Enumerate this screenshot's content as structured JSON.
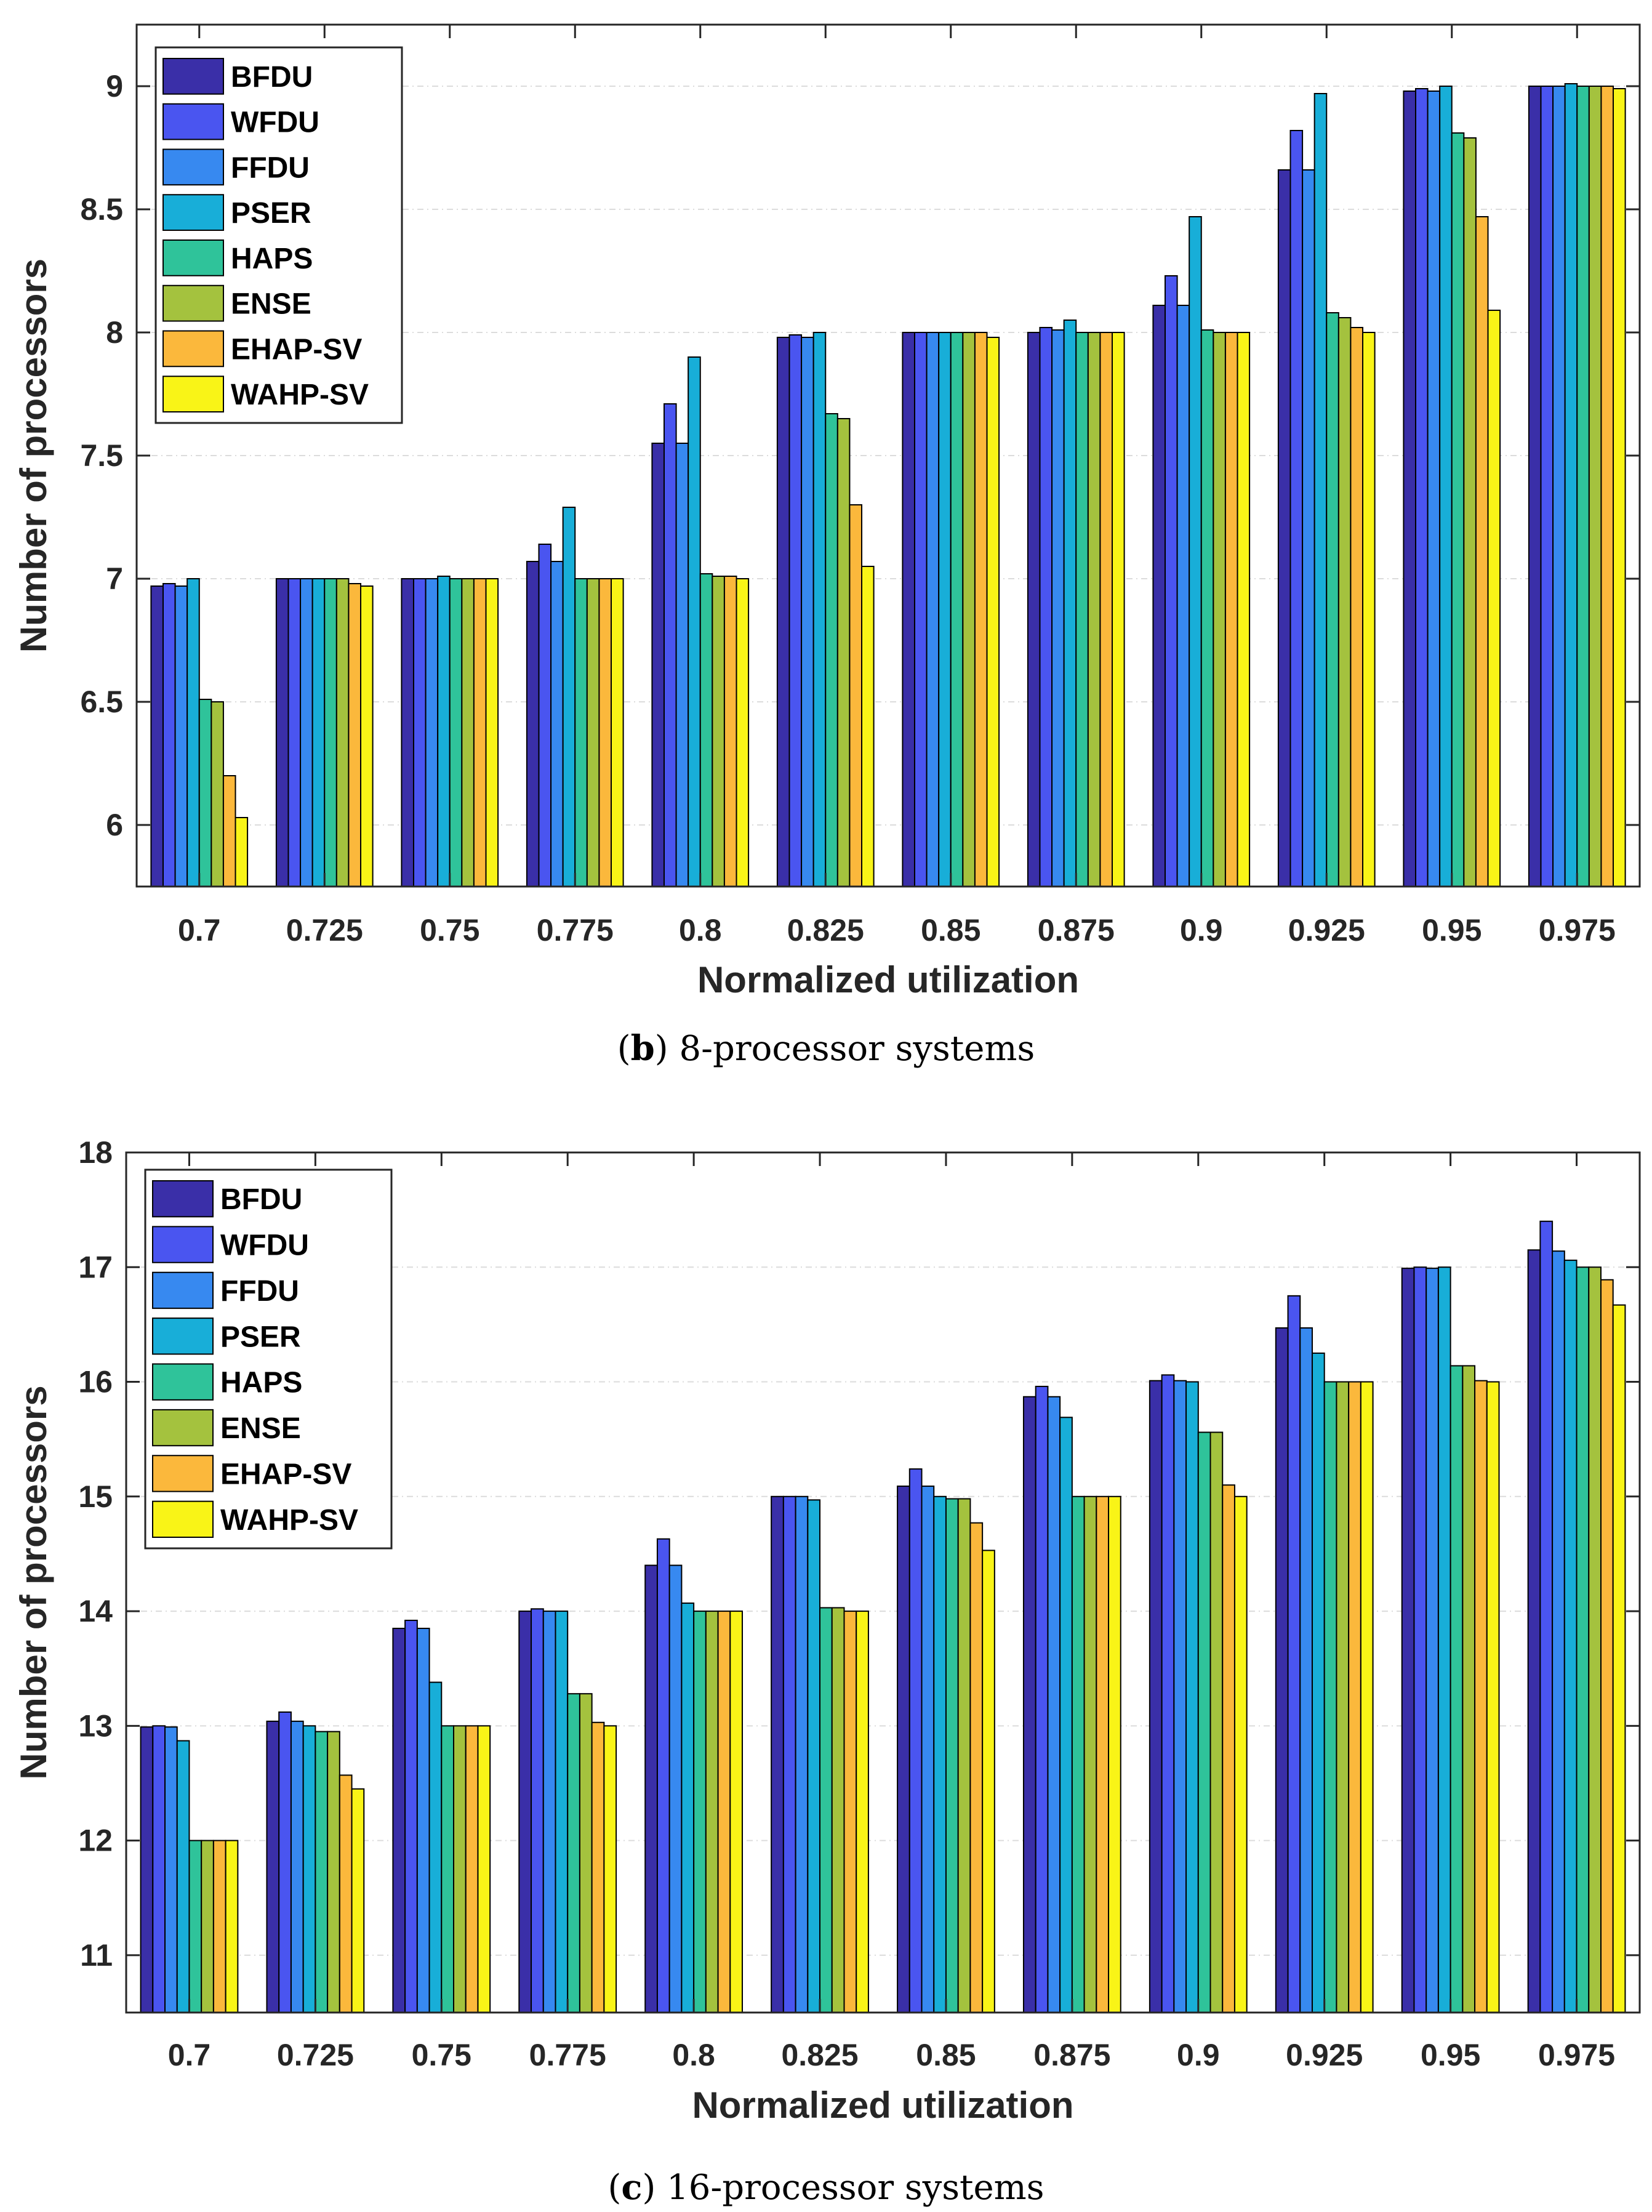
{
  "series_colors": [
    "#3a2fa8",
    "#4a55f0",
    "#3789f0",
    "#18aed8",
    "#2fc39a",
    "#a4c23e",
    "#fbb83c",
    "#f9f417"
  ],
  "chart_data": [
    {
      "type": "bar",
      "id": "b",
      "caption_label": "b",
      "caption_text": "8-processor systems",
      "xlabel": "Normalized utilization",
      "ylabel": "Number of processors",
      "ylim": [
        5.75,
        9.25
      ],
      "yticks": [
        6,
        6.5,
        7,
        7.5,
        8,
        8.5,
        9
      ],
      "ytick_labels": [
        "6",
        "6.5",
        "7",
        "7.5",
        "8",
        "8.5",
        "9"
      ],
      "grid": true,
      "legend_position": "top-left",
      "categories": [
        "0.7",
        "0.725",
        "0.75",
        "0.775",
        "0.8",
        "0.825",
        "0.85",
        "0.875",
        "0.9",
        "0.925",
        "0.95",
        "0.975"
      ],
      "series": [
        {
          "name": "BFDU",
          "values": [
            6.97,
            7.0,
            7.0,
            7.07,
            7.55,
            7.98,
            8.0,
            8.0,
            8.11,
            8.66,
            8.98,
            9.0
          ]
        },
        {
          "name": "WFDU",
          "values": [
            6.98,
            7.0,
            7.0,
            7.14,
            7.71,
            7.99,
            8.0,
            8.02,
            8.23,
            8.82,
            8.99,
            9.0
          ]
        },
        {
          "name": "FFDU",
          "values": [
            6.97,
            7.0,
            7.0,
            7.07,
            7.55,
            7.98,
            8.0,
            8.01,
            8.11,
            8.66,
            8.98,
            9.0
          ]
        },
        {
          "name": "PSER",
          "values": [
            7.0,
            7.0,
            7.01,
            7.29,
            7.9,
            8.0,
            8.0,
            8.05,
            8.47,
            8.97,
            9.0,
            9.01
          ]
        },
        {
          "name": "HAPS",
          "values": [
            6.51,
            7.0,
            7.0,
            7.0,
            7.02,
            7.67,
            8.0,
            8.0,
            8.01,
            8.08,
            8.81,
            9.0
          ]
        },
        {
          "name": "ENSE",
          "values": [
            6.5,
            7.0,
            7.0,
            7.0,
            7.01,
            7.65,
            8.0,
            8.0,
            8.0,
            8.06,
            8.79,
            9.0
          ]
        },
        {
          "name": "EHAP-SV",
          "values": [
            6.2,
            6.98,
            7.0,
            7.0,
            7.01,
            7.3,
            8.0,
            8.0,
            8.0,
            8.02,
            8.47,
            9.0
          ]
        },
        {
          "name": "WAHP-SV",
          "values": [
            6.03,
            6.97,
            7.0,
            7.0,
            7.0,
            7.05,
            7.98,
            8.0,
            8.0,
            8.0,
            8.09,
            8.99
          ]
        }
      ]
    },
    {
      "type": "bar",
      "id": "c",
      "caption_label": "c",
      "caption_text": "16-processor systems",
      "xlabel": "Normalized utilization",
      "ylabel": "Number of processors",
      "ylim": [
        10.5,
        18
      ],
      "yticks": [
        11,
        12,
        13,
        14,
        15,
        16,
        17,
        18
      ],
      "ytick_labels": [
        "11",
        "12",
        "13",
        "14",
        "15",
        "16",
        "17",
        "18"
      ],
      "grid": true,
      "legend_position": "top-left",
      "categories": [
        "0.7",
        "0.725",
        "0.75",
        "0.775",
        "0.8",
        "0.825",
        "0.85",
        "0.875",
        "0.9",
        "0.925",
        "0.95",
        "0.975"
      ],
      "series": [
        {
          "name": "BFDU",
          "values": [
            12.99,
            13.04,
            13.85,
            14.0,
            14.4,
            15.0,
            15.09,
            15.87,
            16.01,
            16.47,
            16.99,
            17.15
          ]
        },
        {
          "name": "WFDU",
          "values": [
            13.0,
            13.12,
            13.92,
            14.02,
            14.63,
            15.0,
            15.24,
            15.96,
            16.06,
            16.75,
            17.0,
            17.4
          ]
        },
        {
          "name": "FFDU",
          "values": [
            12.99,
            13.04,
            13.85,
            14.0,
            14.4,
            15.0,
            15.09,
            15.87,
            16.01,
            16.47,
            16.99,
            17.14
          ]
        },
        {
          "name": "PSER",
          "values": [
            12.87,
            13.0,
            13.38,
            14.0,
            14.07,
            14.97,
            15.0,
            15.69,
            16.0,
            16.25,
            17.0,
            17.06
          ]
        },
        {
          "name": "HAPS",
          "values": [
            12.0,
            12.95,
            13.0,
            13.28,
            14.0,
            14.03,
            14.98,
            15.0,
            15.56,
            16.0,
            16.14,
            17.0
          ]
        },
        {
          "name": "ENSE",
          "values": [
            12.0,
            12.95,
            13.0,
            13.28,
            14.0,
            14.03,
            14.98,
            15.0,
            15.56,
            16.0,
            16.14,
            17.0
          ]
        },
        {
          "name": "EHAP-SV",
          "values": [
            12.0,
            12.57,
            13.0,
            13.03,
            14.0,
            14.0,
            14.77,
            15.0,
            15.1,
            16.0,
            16.01,
            16.89
          ]
        },
        {
          "name": "WAHP-SV",
          "values": [
            12.0,
            12.45,
            13.0,
            13.0,
            14.0,
            14.0,
            14.53,
            15.0,
            15.0,
            16.0,
            16.0,
            16.67
          ]
        }
      ]
    }
  ]
}
